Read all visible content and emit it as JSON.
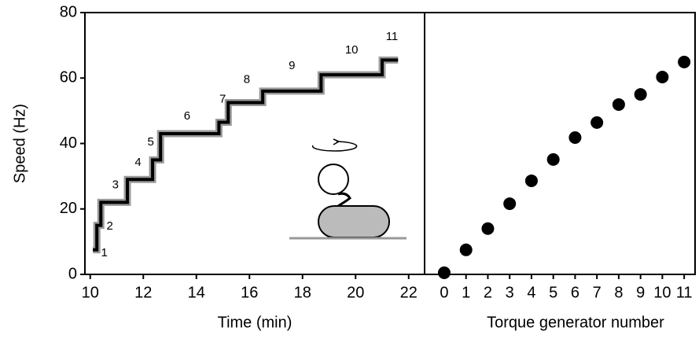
{
  "chart_data": [
    {
      "type": "line",
      "ylabel": "Speed (Hz)",
      "xlabel": "Time (min)",
      "color": "#000000",
      "noise_color": "#999999",
      "x": [
        10.1,
        10.25,
        10.25,
        10.4,
        10.4,
        11.4,
        11.4,
        12.35,
        12.35,
        12.65,
        12.65,
        14.85,
        14.85,
        15.2,
        15.2,
        16.5,
        16.5,
        18.7,
        18.7,
        21.0,
        21.0,
        21.6
      ],
      "values": [
        7.5,
        7.5,
        15,
        15,
        22,
        22,
        29,
        29,
        35,
        35,
        43,
        43,
        46.5,
        46.5,
        52.5,
        52.5,
        56,
        56,
        61,
        61,
        65.5,
        65.5
      ],
      "annotations": [
        {
          "text": "1",
          "x": 10.53,
          "y": 6.5
        },
        {
          "text": "2",
          "x": 10.74,
          "y": 14.7
        },
        {
          "text": "3",
          "x": 10.95,
          "y": 27.2
        },
        {
          "text": "4",
          "x": 11.8,
          "y": 34.1
        },
        {
          "text": "5",
          "x": 12.28,
          "y": 40.4
        },
        {
          "text": "6",
          "x": 13.65,
          "y": 48.3
        },
        {
          "text": "7",
          "x": 14.99,
          "y": 53.4
        },
        {
          "text": "8",
          "x": 15.9,
          "y": 59.4
        },
        {
          "text": "9",
          "x": 17.6,
          "y": 63.7
        },
        {
          "text": "10",
          "x": 19.85,
          "y": 68.5
        },
        {
          "text": "11",
          "x": 21.37,
          "y": 72.6
        }
      ],
      "xlim": [
        9.8,
        22.6
      ],
      "xticks": [
        10,
        12,
        14,
        16,
        18,
        20,
        22
      ],
      "ylim": [
        0,
        80
      ],
      "yticks": [
        0,
        20,
        40,
        60,
        80
      ]
    },
    {
      "type": "scatter",
      "xlabel": "Torque generator number",
      "color": "#000000",
      "x": [
        0,
        1,
        2,
        3,
        4,
        5,
        6,
        7,
        8,
        9,
        10,
        11
      ],
      "values": [
        0.5,
        7.5,
        14,
        21.6,
        28.6,
        35.1,
        41.8,
        46.4,
        51.9,
        55,
        60.3,
        64.9
      ],
      "xlim": [
        -0.9,
        11.5
      ],
      "xticks": [
        0,
        1,
        2,
        3,
        4,
        5,
        6,
        7,
        8,
        9,
        10,
        11
      ],
      "ylim": [
        0,
        80
      ]
    }
  ]
}
